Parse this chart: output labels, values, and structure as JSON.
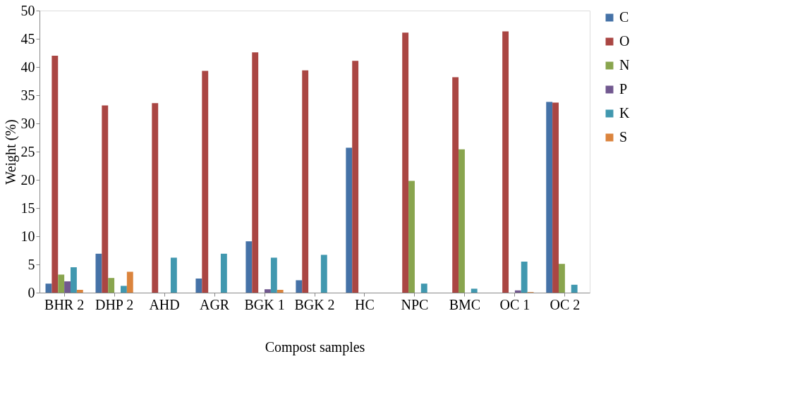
{
  "chart_data": {
    "type": "bar",
    "xlabel": "Compost samples",
    "ylabel": "Weight (%)",
    "categories": [
      "BHR 2",
      "DHP 2",
      "AHD",
      "AGR",
      "BGK 1",
      "BGK 2",
      "HC",
      "NPC",
      "BMC",
      "OC 1",
      "OC 2"
    ],
    "series": [
      {
        "name": "C",
        "color": "#4572a7",
        "values": [
          1.6,
          6.9,
          null,
          2.5,
          9.1,
          2.2,
          25.7,
          null,
          null,
          null,
          33.8
        ]
      },
      {
        "name": "O",
        "color": "#aa4643",
        "values": [
          42,
          33.2,
          33.6,
          39.3,
          42.6,
          39.4,
          41.1,
          46.1,
          38.2,
          46.3,
          33.7
        ]
      },
      {
        "name": "N",
        "color": "#89a54e",
        "values": [
          3.2,
          2.6,
          null,
          null,
          null,
          null,
          null,
          19.8,
          25.4,
          null,
          5.1
        ]
      },
      {
        "name": "P",
        "color": "#71588f",
        "values": [
          2.0,
          null,
          null,
          null,
          0.6,
          null,
          null,
          null,
          null,
          0.4,
          null
        ]
      },
      {
        "name": "K",
        "color": "#4198af",
        "values": [
          4.5,
          1.2,
          6.2,
          6.9,
          6.2,
          6.7,
          null,
          1.6,
          0.7,
          5.5,
          1.4
        ]
      },
      {
        "name": "S",
        "color": "#db843d",
        "values": [
          0.5,
          3.7,
          null,
          null,
          0.5,
          null,
          null,
          null,
          null,
          0.1,
          null
        ]
      }
    ],
    "ylim": [
      0,
      50
    ],
    "yticks": [
      0,
      5,
      10,
      15,
      20,
      25,
      30,
      35,
      40,
      45,
      50
    ],
    "grid": false,
    "legend": "right"
  }
}
